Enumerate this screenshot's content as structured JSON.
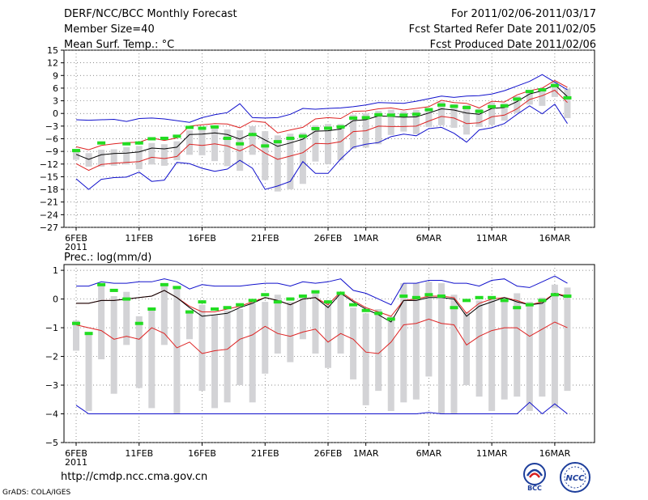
{
  "header": {
    "title": "DERF/NCC/BCC Monthly Forecast",
    "member": "Member Size=40",
    "variable": "Mean Surf. Temp.: °C",
    "period": "For 2011/02/06-2011/03/17",
    "refer": "Fcst Started Refer Date 2011/02/05",
    "produced": "Fcst Produced Date 2011/02/06"
  },
  "footer": {
    "url": "http://cmdp.ncc.cma.gov.cn",
    "grads": "GrADS: COLA/IGES",
    "bcc_logo": "BCC",
    "ncc_logo": "NCC"
  },
  "colors": {
    "mean": "#000000",
    "spread": "#dd2222",
    "extreme": "#1010cc",
    "bar": "#d3d3d6",
    "green": "#22dd22"
  },
  "chart_data": [
    {
      "type": "line",
      "name": "temperature",
      "title": "Mean Surf. Temp.: °C",
      "xlabel": "",
      "ylabel": "°C",
      "ylim": [
        -27,
        15
      ],
      "yticks": [
        15,
        12,
        9,
        6,
        3,
        0,
        -3,
        -6,
        -9,
        -12,
        -15,
        -18,
        -21,
        -24,
        -27
      ],
      "xticks": [
        {
          "day": 0,
          "label": "6FEB",
          "sub": "2011"
        },
        {
          "day": 5,
          "label": "11FEB"
        },
        {
          "day": 10,
          "label": "16FEB"
        },
        {
          "day": 15,
          "label": "21FEB"
        },
        {
          "day": 20,
          "label": "26FEB"
        },
        {
          "day": 23,
          "label": "1MAR"
        },
        {
          "day": 28,
          "label": "6MAR"
        },
        {
          "day": 33,
          "label": "11MAR"
        },
        {
          "day": 38,
          "label": "16MAR"
        }
      ],
      "days": 40,
      "series": [
        {
          "name": "max",
          "values": [
            -1.5,
            -1.6,
            -1.5,
            -1.4,
            -1.9,
            -1.2,
            -1.1,
            -1.3,
            -1.7,
            -2.1,
            -1.0,
            -0.3,
            0.2,
            2.3,
            -1.0,
            -1.1,
            -1.0,
            -0.2,
            1.2,
            1.0,
            1.2,
            1.3,
            1.6,
            2.0,
            2.6,
            2.5,
            2.4,
            2.9,
            3.5,
            4.1,
            3.8,
            4.1,
            4.2,
            4.6,
            5.4,
            6.5,
            7.6,
            9.2,
            7.4,
            5.6
          ]
        },
        {
          "name": "upper",
          "values": [
            -7.9,
            -8.6,
            -7.6,
            -7.2,
            -6.9,
            -6.8,
            -5.8,
            -6.4,
            -5.8,
            -3.0,
            -2.7,
            -2.4,
            -2.5,
            -3.4,
            -1.8,
            -2.1,
            -4.6,
            -3.9,
            -3.3,
            -1.3,
            -1.0,
            -1.2,
            0.5,
            0.6,
            1.1,
            1.3,
            0.8,
            1.2,
            1.6,
            3.1,
            2.6,
            2.4,
            1.3,
            2.9,
            2.7,
            4.4,
            5.4,
            6.0,
            7.8,
            6.2
          ]
        },
        {
          "name": "mean",
          "values": [
            -9.7,
            -10.9,
            -9.8,
            -9.5,
            -9.4,
            -9.1,
            -8.2,
            -8.4,
            -8.0,
            -5.0,
            -4.9,
            -4.6,
            -5.0,
            -6.1,
            -4.7,
            -6.3,
            -7.8,
            -7.0,
            -6.1,
            -4.2,
            -4.1,
            -3.7,
            -1.7,
            -1.5,
            -0.6,
            -0.7,
            -0.9,
            -0.8,
            0.1,
            1.1,
            0.8,
            0.1,
            -0.2,
            1.2,
            1.4,
            2.8,
            4.6,
            5.4,
            6.8,
            4.0
          ]
        },
        {
          "name": "lower",
          "values": [
            -11.9,
            -13.5,
            -12.1,
            -11.8,
            -11.6,
            -11.4,
            -10.4,
            -10.7,
            -10.2,
            -7.3,
            -7.6,
            -7.2,
            -7.7,
            -8.9,
            -7.4,
            -9.4,
            -10.9,
            -10.1,
            -9.3,
            -7.1,
            -7.2,
            -6.7,
            -4.3,
            -4.1,
            -3.0,
            -3.1,
            -3.1,
            -3.0,
            -1.8,
            -0.7,
            -1.1,
            -2.4,
            -2.2,
            -0.8,
            -0.4,
            1.1,
            3.3,
            4.2,
            5.5,
            2.6
          ]
        },
        {
          "name": "min",
          "values": [
            -15.5,
            -18.0,
            -15.6,
            -15.2,
            -15.1,
            -13.9,
            -16.1,
            -15.8,
            -11.6,
            -11.9,
            -13.0,
            -13.7,
            -13.2,
            -11.1,
            -13.0,
            -18.0,
            -17.2,
            -16.1,
            -11.4,
            -14.2,
            -14.2,
            -10.8,
            -8.0,
            -7.3,
            -6.9,
            -5.5,
            -4.9,
            -5.3,
            -3.6,
            -3.3,
            -4.7,
            -6.8,
            -3.9,
            -3.4,
            -2.4,
            -0.2,
            1.8,
            -0.1,
            2.2,
            -2.4
          ]
        },
        {
          "name": "bar_top",
          "values": [
            -8.4,
            -9.4,
            -8.6,
            -8.5,
            -8.0,
            -7.7,
            -7.0,
            -7.3,
            -6.6,
            -4.0,
            -3.8,
            -3.5,
            -3.8,
            -4.0,
            -3.0,
            -4.2,
            -5.2,
            -4.8,
            -4.6,
            -2.8,
            -2.5,
            -2.5,
            -0.3,
            0.0,
            0.6,
            0.9,
            0.5,
            0.8,
            1.3,
            2.8,
            2.2,
            2.0,
            1.1,
            2.6,
            2.4,
            4.1,
            5.2,
            5.9,
            7.6,
            5.9
          ]
        },
        {
          "name": "bar_bottom",
          "values": [
            -11.0,
            -12.6,
            -12.6,
            -12.4,
            -12.1,
            -13.2,
            -12.1,
            -12.4,
            -11.1,
            -9.8,
            -9.9,
            -11.3,
            -12.5,
            -13.6,
            -9.8,
            -15.8,
            -18.5,
            -18.0,
            -16.7,
            -11.4,
            -12.0,
            -11.1,
            -8.4,
            -8.1,
            -7.3,
            -5.1,
            -4.3,
            -4.9,
            -3.2,
            -2.8,
            -3.4,
            -5.0,
            -3.2,
            -2.7,
            -1.7,
            0.1,
            2.1,
            1.8,
            3.9,
            -1.1
          ]
        },
        {
          "name": "observed",
          "values": [
            -8.8,
            null,
            -7.0,
            null,
            -7.2,
            -7.0,
            -6.0,
            -5.9,
            -5.4,
            -3.3,
            -3.5,
            -3.2,
            -5.9,
            -7.2,
            -5.0,
            -7.7,
            -6.7,
            -5.9,
            -5.4,
            -3.6,
            -3.5,
            -3.2,
            -1.1,
            -1.0,
            -0.3,
            -0.4,
            -0.4,
            -0.2,
            0.9,
            2.0,
            1.7,
            1.4,
            0.5,
            1.6,
            1.8,
            3.4,
            5.2,
            5.6,
            6.6,
            3.7
          ]
        }
      ]
    },
    {
      "type": "line",
      "name": "precipitation",
      "title": "Prec.: log(mm/d)",
      "xlabel": "",
      "ylabel": "log(mm/d)",
      "ylim": [
        -5,
        1.2
      ],
      "yticks": [
        1,
        0,
        -1,
        -2,
        -3,
        -4,
        -5
      ],
      "xticks": [
        {
          "day": 0,
          "label": "6FEB",
          "sub": "2011"
        },
        {
          "day": 5,
          "label": "11FEB"
        },
        {
          "day": 10,
          "label": "16FEB"
        },
        {
          "day": 15,
          "label": "21FEB"
        },
        {
          "day": 20,
          "label": "26FEB"
        },
        {
          "day": 23,
          "label": "1MAR"
        },
        {
          "day": 28,
          "label": "6MAR"
        },
        {
          "day": 33,
          "label": "11MAR"
        },
        {
          "day": 38,
          "label": "16MAR"
        }
      ],
      "days": 40,
      "series": [
        {
          "name": "max",
          "values": [
            0.45,
            0.45,
            0.6,
            0.55,
            0.55,
            0.6,
            0.6,
            0.7,
            0.6,
            0.35,
            0.5,
            0.45,
            0.45,
            0.45,
            0.5,
            0.55,
            0.55,
            0.45,
            0.6,
            0.55,
            0.6,
            0.7,
            0.3,
            0.2,
            0.0,
            -0.2,
            0.55,
            0.55,
            0.65,
            0.65,
            0.55,
            0.55,
            0.45,
            0.65,
            0.7,
            0.45,
            0.4,
            0.6,
            0.8,
            0.55
          ]
        },
        {
          "name": "upper",
          "values": [
            -0.15,
            -0.15,
            -0.05,
            -0.05,
            0.0,
            0.05,
            0.1,
            0.3,
            0.05,
            -0.25,
            -0.45,
            -0.45,
            -0.35,
            -0.25,
            -0.1,
            0.05,
            -0.05,
            -0.2,
            0.0,
            0.05,
            -0.2,
            0.25,
            -0.05,
            -0.3,
            -0.45,
            -0.6,
            -0.05,
            0.0,
            0.1,
            0.1,
            0.05,
            -0.5,
            -0.15,
            0.0,
            0.05,
            -0.05,
            -0.2,
            -0.1,
            0.2,
            0.1
          ]
        },
        {
          "name": "mean",
          "values": [
            -0.15,
            -0.15,
            -0.05,
            -0.05,
            0.0,
            0.05,
            0.1,
            0.3,
            0.05,
            -0.3,
            -0.6,
            -0.55,
            -0.5,
            -0.3,
            -0.15,
            0.05,
            -0.05,
            -0.2,
            0.0,
            0.05,
            -0.3,
            0.2,
            -0.1,
            -0.35,
            -0.55,
            -0.8,
            -0.05,
            -0.05,
            0.05,
            0.05,
            0.0,
            -0.6,
            -0.25,
            -0.1,
            0.05,
            -0.1,
            -0.2,
            -0.15,
            0.2,
            0.05
          ]
        },
        {
          "name": "lower",
          "values": [
            -0.9,
            -1.0,
            -1.1,
            -1.4,
            -1.3,
            -1.4,
            -1.0,
            -1.2,
            -1.7,
            -1.5,
            -1.9,
            -1.8,
            -1.75,
            -1.4,
            -1.25,
            -0.95,
            -1.2,
            -1.3,
            -1.15,
            -1.05,
            -1.5,
            -1.2,
            -1.4,
            -1.85,
            -1.9,
            -1.5,
            -0.9,
            -0.85,
            -0.7,
            -0.85,
            -0.9,
            -1.6,
            -1.3,
            -1.1,
            -1.0,
            -1.0,
            -1.3,
            -1.05,
            -0.8,
            -1.0
          ]
        },
        {
          "name": "min",
          "values": [
            -3.7,
            -4.0,
            -4.0,
            -4.0,
            -4.0,
            -4.0,
            -4.0,
            -4.0,
            -4.0,
            -4.0,
            -4.0,
            -4.0,
            -4.0,
            -4.0,
            -4.0,
            -4.0,
            -4.0,
            -4.0,
            -4.0,
            -4.0,
            -4.0,
            -4.0,
            -4.0,
            -4.0,
            -4.0,
            -4.0,
            -4.0,
            -4.0,
            -3.95,
            -4.0,
            -4.0,
            -4.0,
            -4.0,
            -4.0,
            -4.0,
            -4.0,
            -3.6,
            -4.0,
            -3.65,
            -4.0
          ]
        },
        {
          "name": "bar_top",
          "values": [
            -0.75,
            -1.2,
            0.5,
            0.1,
            0.25,
            -0.6,
            -0.3,
            0.45,
            0.45,
            -0.5,
            -0.2,
            -0.55,
            -0.4,
            -0.35,
            -0.15,
            -0.1,
            0.15,
            -0.1,
            0.1,
            0.2,
            -0.2,
            0.15,
            -0.3,
            -0.5,
            -0.35,
            -0.6,
            0.55,
            0.55,
            0.6,
            0.55,
            0.15,
            -0.45,
            -0.05,
            0.0,
            0.05,
            0.2,
            -0.1,
            0.05,
            0.5,
            0.4
          ]
        },
        {
          "name": "bar_bottom",
          "values": [
            -1.8,
            -3.9,
            -2.1,
            -3.3,
            -1.6,
            -3.1,
            -3.8,
            -1.6,
            -4.0,
            -1.4,
            -3.2,
            -3.8,
            -3.6,
            -3.0,
            -3.6,
            -2.6,
            -1.9,
            -2.2,
            -1.4,
            -1.9,
            -2.4,
            -1.9,
            -2.8,
            -3.7,
            -3.2,
            -3.9,
            -3.6,
            -3.5,
            -2.7,
            -4.0,
            -4.0,
            -3.0,
            -3.4,
            -3.9,
            -3.5,
            -3.4,
            -3.9,
            -3.4,
            -3.8,
            -3.2
          ]
        },
        {
          "name": "observed",
          "values": [
            -0.85,
            -1.2,
            0.5,
            0.3,
            0.0,
            -0.85,
            -0.35,
            0.5,
            0.4,
            -0.45,
            -0.1,
            -0.35,
            -0.3,
            -0.2,
            -0.05,
            0.15,
            -0.1,
            0.0,
            0.1,
            0.25,
            -0.1,
            0.2,
            -0.2,
            -0.4,
            -0.5,
            -0.7,
            0.1,
            0.05,
            0.15,
            0.1,
            -0.3,
            -0.05,
            0.05,
            0.05,
            -0.05,
            -0.3,
            -0.2,
            -0.05,
            0.15,
            0.1
          ]
        }
      ]
    }
  ]
}
